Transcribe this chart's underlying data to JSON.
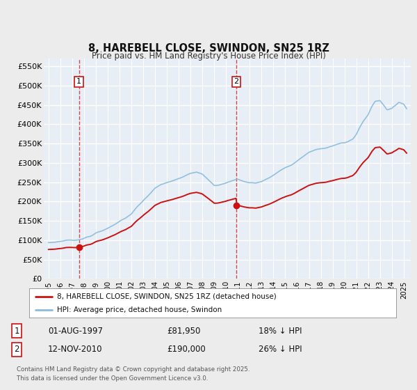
{
  "title": "8, HAREBELL CLOSE, SWINDON, SN25 1RZ",
  "subtitle": "Price paid vs. HM Land Registry's House Price Index (HPI)",
  "bg_color": "#f0f0f0",
  "plot_bg_color": "#eef2f7",
  "grid_color": "#ffffff",
  "red_line_color": "#cc1111",
  "blue_line_color": "#88bbdd",
  "purchase1_year": 1997.58,
  "purchase1_value": 81950,
  "purchase2_year": 2010.87,
  "purchase2_value": 190000,
  "purchase1_date": "01-AUG-1997",
  "purchase1_price": "£81,950",
  "purchase1_hpi": "18% ↓ HPI",
  "purchase2_date": "12-NOV-2010",
  "purchase2_price": "£190,000",
  "purchase2_hpi": "26% ↓ HPI",
  "ylim": [
    0,
    570000
  ],
  "yticks": [
    0,
    50000,
    100000,
    150000,
    200000,
    250000,
    300000,
    350000,
    400000,
    450000,
    500000,
    550000
  ],
  "ytick_labels": [
    "£0",
    "£50K",
    "£100K",
    "£150K",
    "£200K",
    "£250K",
    "£300K",
    "£350K",
    "£400K",
    "£450K",
    "£500K",
    "£550K"
  ],
  "copyright": "Contains HM Land Registry data © Crown copyright and database right 2025.\nThis data is licensed under the Open Government Licence v3.0.",
  "legend_red": "8, HAREBELL CLOSE, SWINDON, SN25 1RZ (detached house)",
  "legend_blue": "HPI: Average price, detached house, Swindon"
}
